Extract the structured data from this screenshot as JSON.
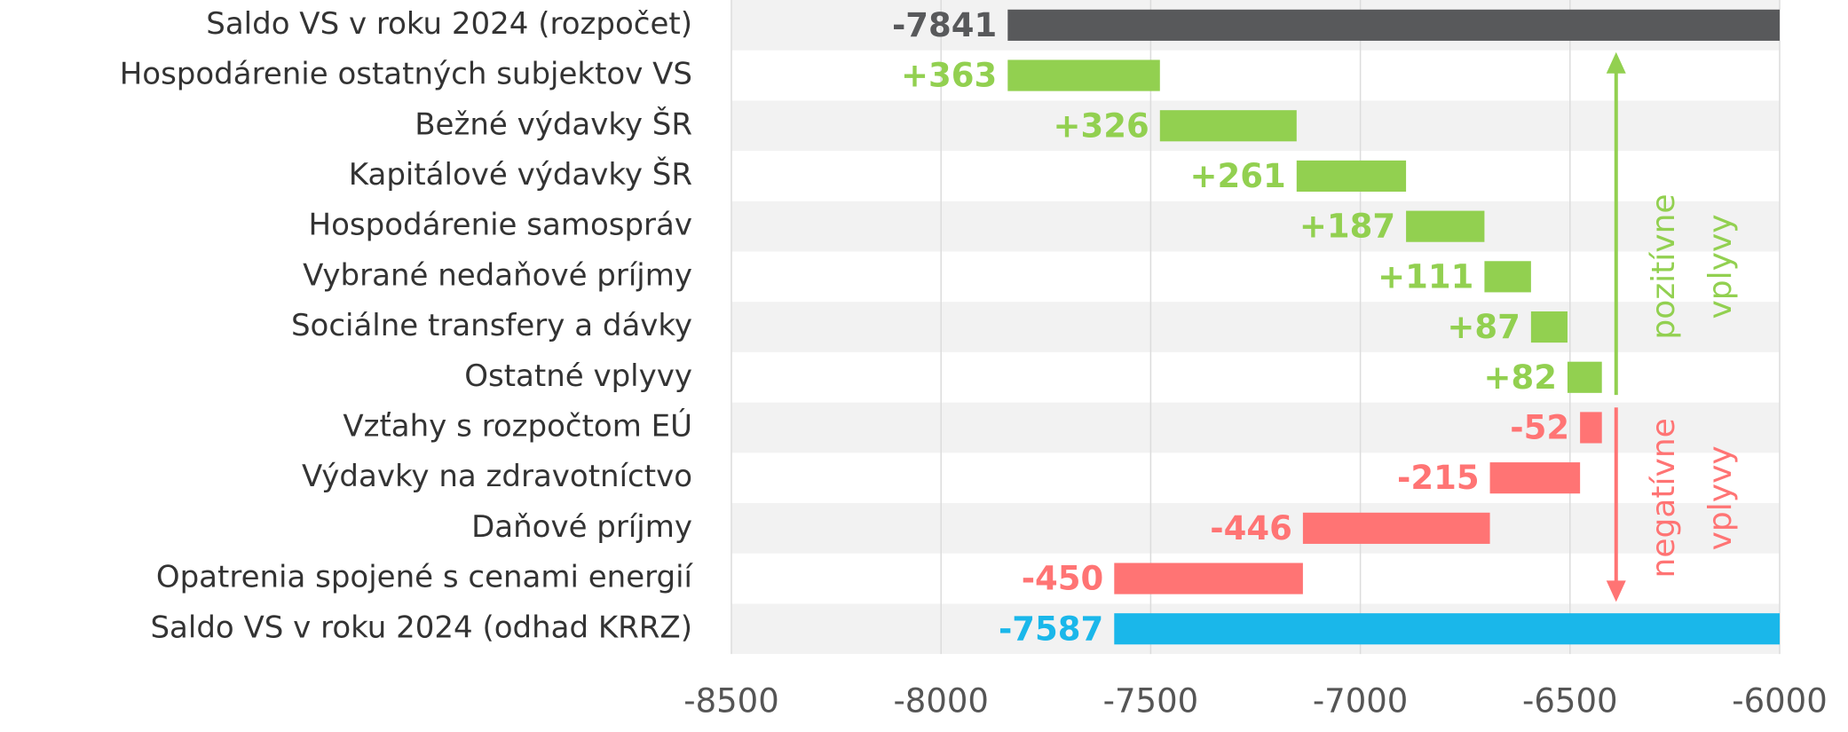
{
  "chart_data": {
    "type": "waterfall",
    "categories": [
      "Saldo VS v roku 2024 (rozpočet)",
      "Hospodárenie ostatných subjektov VS",
      "Bežné výdavky ŠR",
      "Kapitálové výdavky ŠR",
      "Hospodárenie samospráv",
      "Vybrané nedaňové príjmy",
      "Sociálne transfery a dávky",
      "Ostatné vplyvy",
      "Vzťahy s rozpočtom EÚ",
      "Výdavky na zdravotníctvo",
      "Daňové príjmy",
      "Opatrenia spojené s cenami energií",
      "Saldo VS v roku 2024 (odhad KRRZ)"
    ],
    "values": [
      -7841,
      363,
      326,
      261,
      187,
      111,
      87,
      82,
      -52,
      -215,
      -446,
      -450,
      -7587
    ],
    "value_labels": [
      "-7841",
      "+363",
      "+326",
      "+261",
      "+187",
      "+111",
      "+87",
      "+82",
      "-52",
      "-215",
      "-446",
      "-450",
      "-7587"
    ],
    "colors": [
      "#58595b",
      "#92d050",
      "#92d050",
      "#92d050",
      "#92d050",
      "#92d050",
      "#92d050",
      "#92d050",
      "#ff7474",
      "#ff7474",
      "#ff7474",
      "#ff7474",
      "#1ab7ea"
    ],
    "xlim": [
      -8500,
      -6000
    ],
    "xticks": [
      -8500,
      -8000,
      -7500,
      -7000,
      -6500,
      -6000
    ],
    "grid": true,
    "annotations": [
      {
        "lines": [
          "pozitívne",
          "vplyvy"
        ],
        "color": "#92d050"
      },
      {
        "lines": [
          "negatívne",
          "vplyvy"
        ],
        "color": "#ff7474"
      }
    ]
  }
}
